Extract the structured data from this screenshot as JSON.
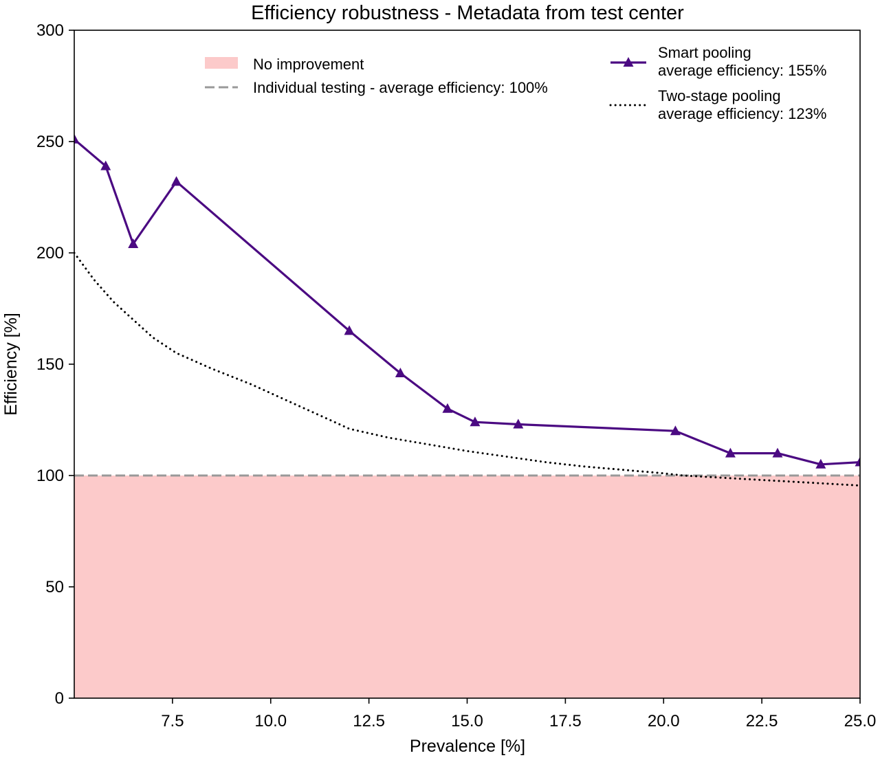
{
  "chart_data": {
    "type": "line",
    "title": "Efficiency robustness - Metadata from test center",
    "xlabel": "Prevalence [%]",
    "ylabel": "Efficiency [%]",
    "xlim": [
      5.0,
      25.0
    ],
    "ylim": [
      0,
      300
    ],
    "xticks": [
      7.5,
      10.0,
      12.5,
      15.0,
      17.5,
      20.0,
      22.5,
      25.0
    ],
    "xtick_labels": [
      "7.5",
      "10.0",
      "12.5",
      "15.0",
      "17.5",
      "20.0",
      "22.5",
      "25.0"
    ],
    "yticks": [
      0,
      50,
      100,
      150,
      200,
      250,
      300
    ],
    "ytick_labels": [
      "0",
      "50",
      "100",
      "150",
      "200",
      "250",
      "300"
    ],
    "grid": false,
    "shaded_region": {
      "label": "No improvement",
      "y_range": [
        0,
        100
      ],
      "color": "#fccaca"
    },
    "reference_line": {
      "label": "Individual testing - average efficiency: 100%",
      "y": 100,
      "style": "dashed",
      "color": "#999999"
    },
    "series": [
      {
        "name": "Smart pooling\naverage efficiency: 155%",
        "name_lines": [
          "Smart pooling",
          "average efficiency: 155%"
        ],
        "style": "solid",
        "marker": "triangle",
        "color": "#4b0a82",
        "x": [
          5.0,
          5.8,
          6.5,
          7.6,
          12.0,
          13.3,
          14.5,
          15.2,
          16.3,
          20.3,
          21.7,
          22.9,
          24.0,
          25.0
        ],
        "y": [
          251,
          239,
          204,
          232,
          165,
          146,
          130,
          124,
          123,
          120,
          110,
          110,
          105,
          106
        ]
      },
      {
        "name": "Two-stage pooling\naverage efficiency: 123%",
        "name_lines": [
          "Two-stage pooling",
          "average efficiency: 123%"
        ],
        "style": "dotted",
        "marker": "none",
        "color": "#000000",
        "x": [
          5.0,
          5.5,
          6.0,
          6.5,
          7.0,
          7.6,
          8.5,
          9.5,
          10.5,
          11.5,
          12.0,
          13.0,
          14.0,
          15.0,
          16.0,
          17.0,
          18.0,
          19.0,
          20.0,
          20.5,
          21.0,
          22.0,
          23.0,
          24.0,
          25.0
        ],
        "y": [
          200,
          188,
          178,
          170,
          162,
          155,
          148,
          141,
          133,
          125,
          121,
          117,
          114,
          111,
          108.5,
          106,
          104,
          102.5,
          101,
          100,
          99.5,
          98.5,
          97.5,
          96.5,
          95.5
        ]
      }
    ],
    "legend": {
      "left_placement": "upper-center",
      "right_placement": "upper-right"
    }
  }
}
